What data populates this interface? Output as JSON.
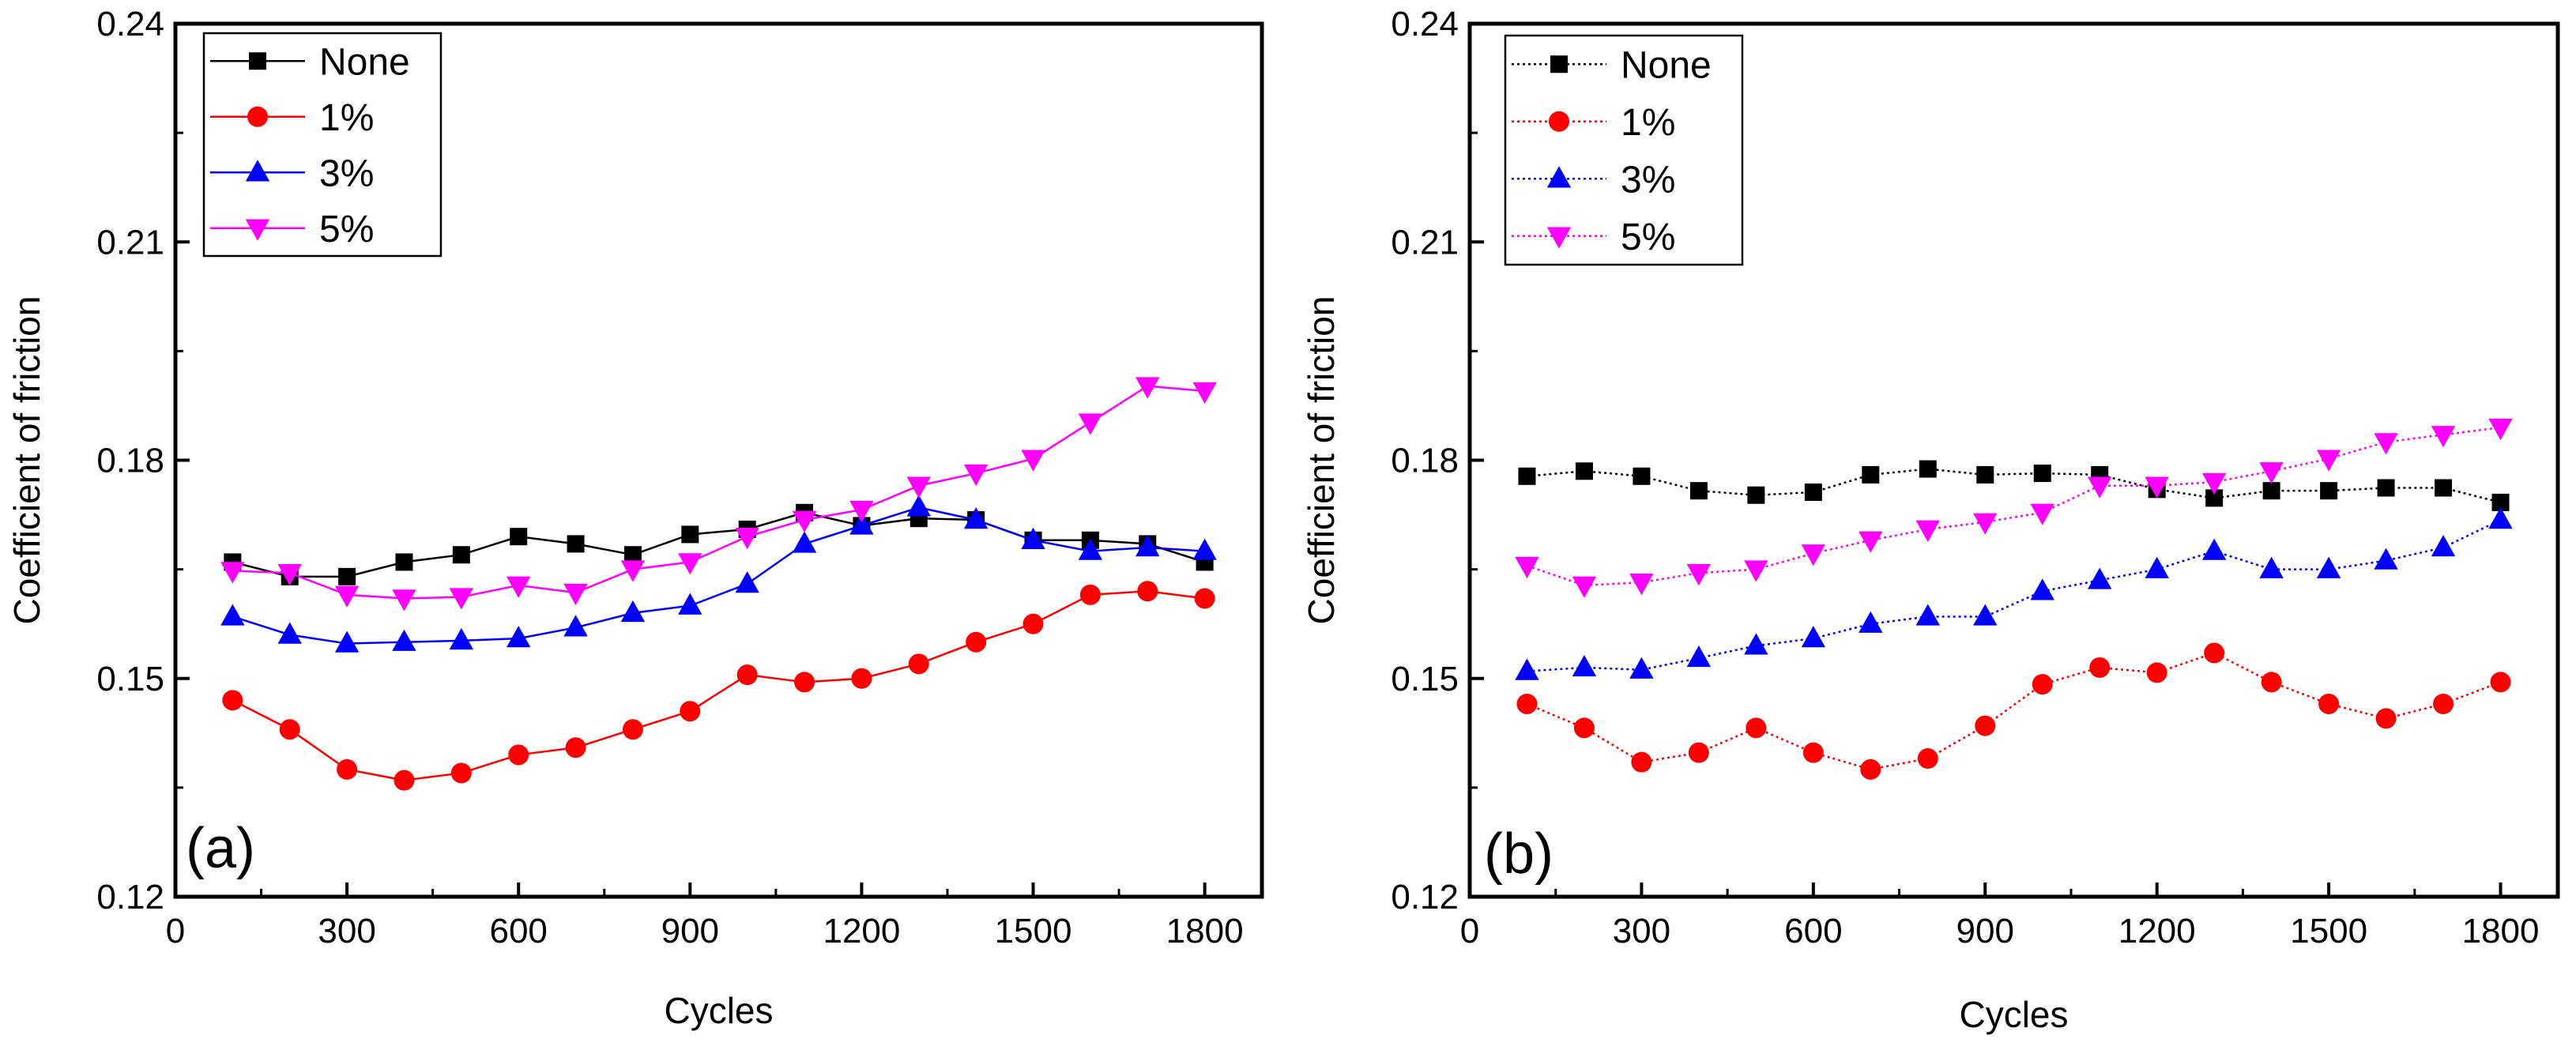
{
  "chart_data": [
    {
      "type": "line",
      "panel_label": "(a)",
      "xlabel": "Cycles",
      "ylabel": "Coefficient of friction",
      "xlim": [
        0,
        1900
      ],
      "ylim": [
        0.12,
        0.24
      ],
      "xticks": [
        0,
        300,
        600,
        900,
        1200,
        1500,
        1800
      ],
      "xtick_labels": [
        "0",
        "300",
        "600",
        "900",
        "1200",
        "1500",
        "1800"
      ],
      "yticks": [
        0.12,
        0.15,
        0.18,
        0.21,
        0.24
      ],
      "ytick_labels": [
        "0.12",
        "0.15",
        "0.18",
        "0.21",
        "0.24"
      ],
      "legend_position": "top-left",
      "x": [
        100,
        200,
        300,
        400,
        500,
        600,
        700,
        800,
        900,
        1000,
        1100,
        1200,
        1300,
        1400,
        1500,
        1600,
        1700,
        1800
      ],
      "series": [
        {
          "name": "None",
          "color": "#000000",
          "marker": "square",
          "values": [
            0.166,
            0.164,
            0.164,
            0.166,
            0.167,
            0.1695,
            0.1685,
            0.167,
            0.1698,
            0.1705,
            0.1728,
            0.171,
            0.172,
            0.1718,
            0.169,
            0.169,
            0.1685,
            0.166
          ]
        },
        {
          "name": "1%",
          "color": "#ff0000",
          "marker": "circle",
          "values": [
            0.147,
            0.143,
            0.1375,
            0.136,
            0.137,
            0.1395,
            0.1405,
            0.143,
            0.1455,
            0.1505,
            0.1495,
            0.15,
            0.152,
            0.155,
            0.1575,
            0.1615,
            0.162,
            0.161
          ]
        },
        {
          "name": "3%",
          "color": "#0000ff",
          "marker": "triangle-up",
          "values": [
            0.1585,
            0.156,
            0.1548,
            0.155,
            0.1552,
            0.1555,
            0.157,
            0.159,
            0.16,
            0.163,
            0.1685,
            0.171,
            0.1735,
            0.1718,
            0.169,
            0.1675,
            0.168,
            0.1675
          ]
        },
        {
          "name": "5%",
          "color": "#ff00ff",
          "marker": "triangle-down",
          "values": [
            0.1648,
            0.1645,
            0.1615,
            0.161,
            0.1612,
            0.1628,
            0.1618,
            0.165,
            0.166,
            0.1695,
            0.1718,
            0.1732,
            0.1765,
            0.1782,
            0.1802,
            0.1852,
            0.1902,
            0.1895
          ]
        }
      ]
    },
    {
      "type": "line",
      "panel_label": "(b)",
      "xlabel": "Cycles",
      "ylabel": "Coefficient of friction",
      "xlim": [
        0,
        1900
      ],
      "ylim": [
        0.12,
        0.24
      ],
      "xticks": [
        0,
        300,
        600,
        900,
        1200,
        1500,
        1800
      ],
      "xtick_labels": [
        "0",
        "300",
        "600",
        "900",
        "1200",
        "1500",
        "1800"
      ],
      "yticks": [
        0.12,
        0.15,
        0.18,
        0.21,
        0.24
      ],
      "ytick_labels": [
        "0.12",
        "0.15",
        "0.18",
        "0.21",
        "0.24"
      ],
      "legend_position": "top-left",
      "x": [
        100,
        200,
        300,
        400,
        500,
        600,
        700,
        800,
        900,
        1000,
        1100,
        1200,
        1300,
        1400,
        1500,
        1600,
        1700,
        1800
      ],
      "series": [
        {
          "name": "None",
          "color": "#000000",
          "marker": "square",
          "values": [
            0.1778,
            0.1785,
            0.1778,
            0.1758,
            0.1752,
            0.1756,
            0.178,
            0.1788,
            0.178,
            0.1782,
            0.178,
            0.176,
            0.1748,
            0.1758,
            0.1758,
            0.1762,
            0.1762,
            0.1742
          ]
        },
        {
          "name": "1%",
          "color": "#ff0000",
          "marker": "circle",
          "values": [
            0.1465,
            0.1432,
            0.1385,
            0.1398,
            0.1432,
            0.1398,
            0.1375,
            0.139,
            0.1435,
            0.1492,
            0.1515,
            0.1508,
            0.1535,
            0.1495,
            0.1465,
            0.1445,
            0.1465,
            0.1495
          ]
        },
        {
          "name": "3%",
          "color": "#0000ff",
          "marker": "triangle-up",
          "values": [
            0.151,
            0.1515,
            0.1512,
            0.1528,
            0.1545,
            0.1555,
            0.1575,
            0.1585,
            0.1585,
            0.162,
            0.1635,
            0.165,
            0.1675,
            0.165,
            0.165,
            0.1662,
            0.168,
            0.1718
          ]
        },
        {
          "name": "5%",
          "color": "#ff00ff",
          "marker": "triangle-down",
          "values": [
            0.1655,
            0.1628,
            0.1632,
            0.1645,
            0.165,
            0.1672,
            0.169,
            0.1705,
            0.1715,
            0.1728,
            0.1765,
            0.1765,
            0.177,
            0.1785,
            0.1802,
            0.1825,
            0.1835,
            0.1845
          ]
        }
      ]
    }
  ]
}
